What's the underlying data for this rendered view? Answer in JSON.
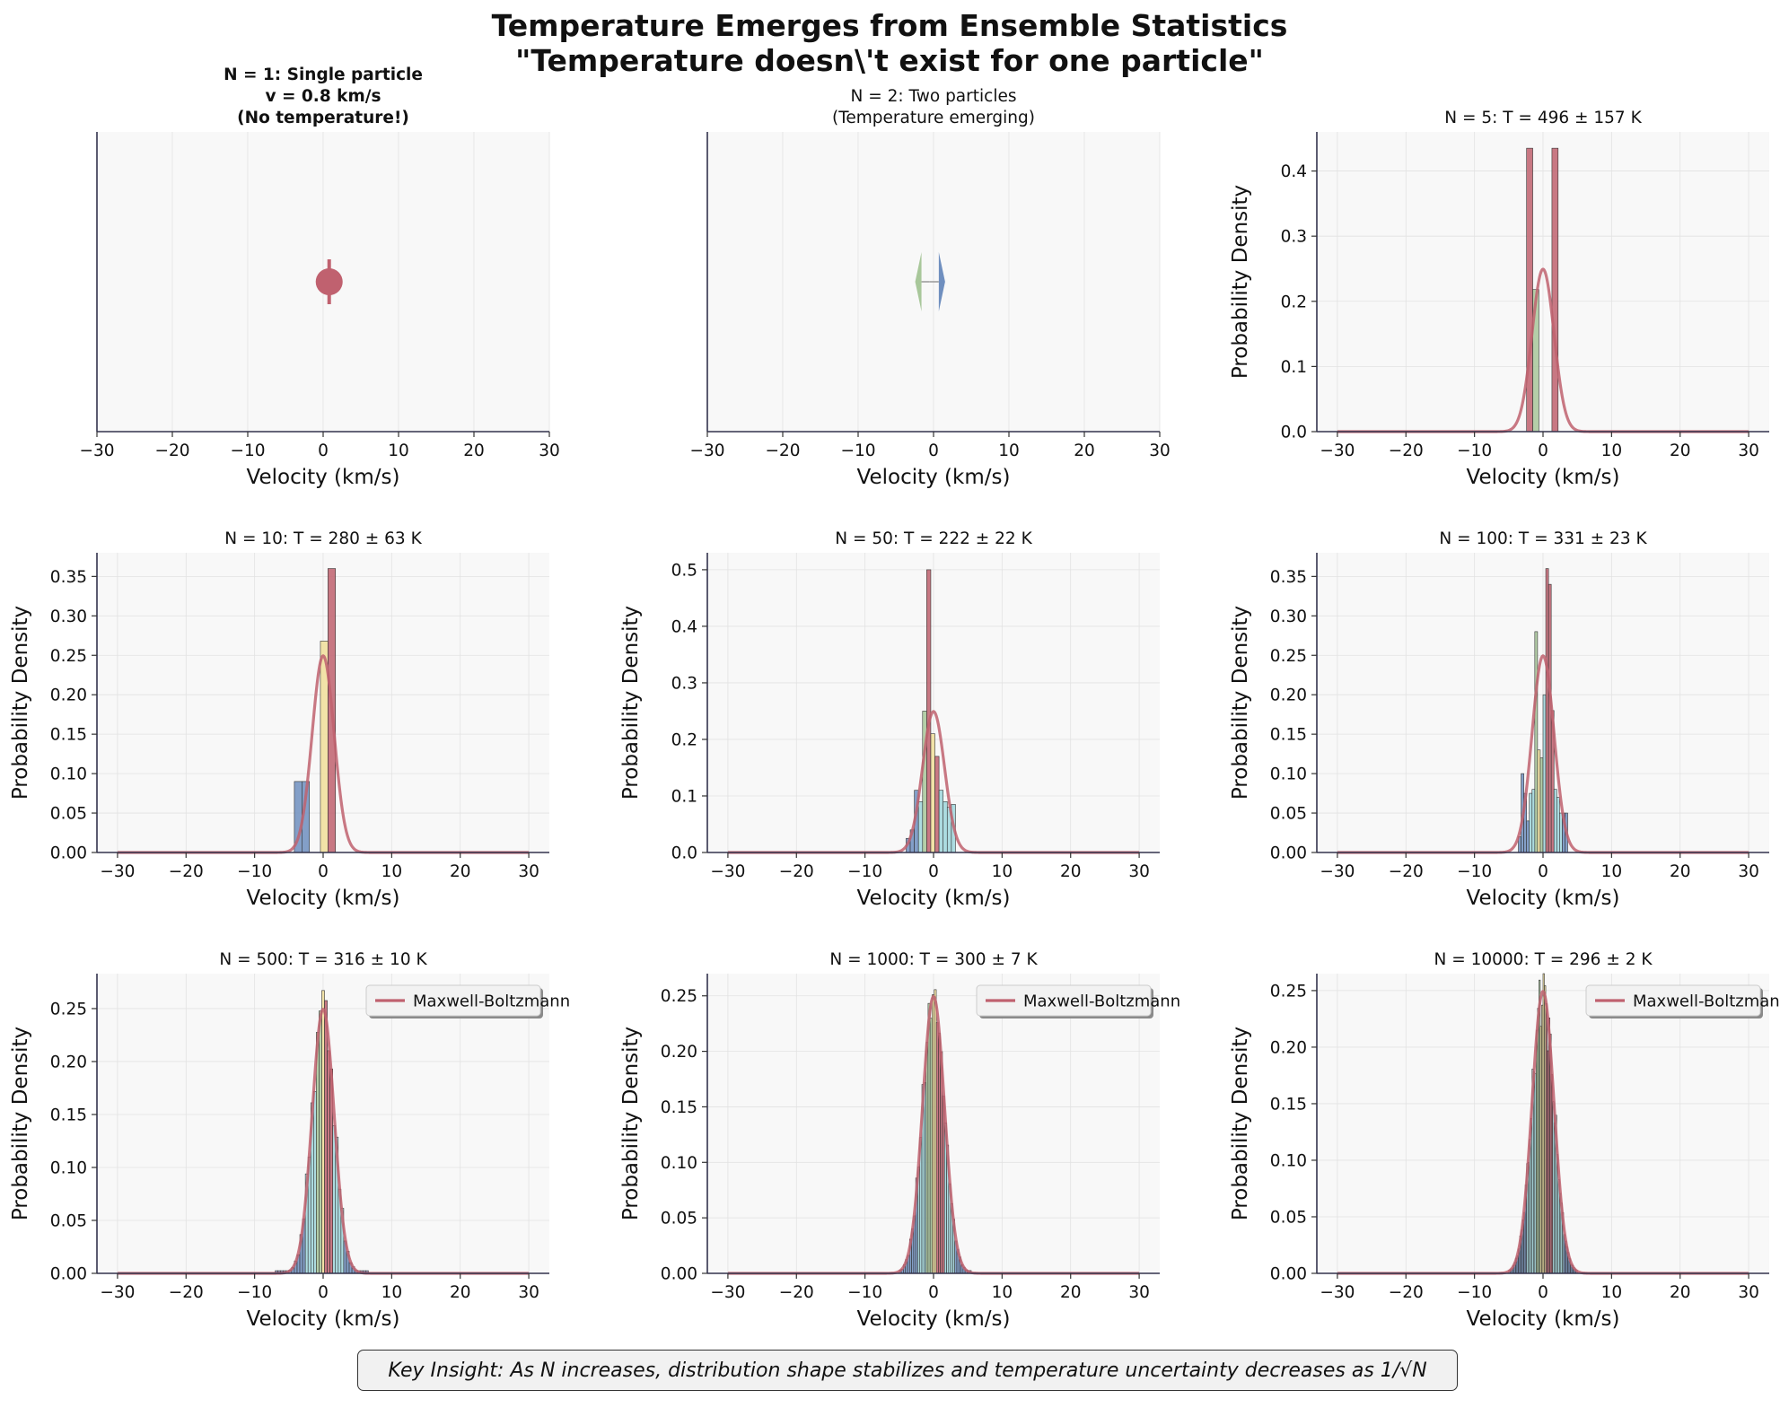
{
  "figure": {
    "suptitle_line1": "Temperature Emerges from Ensemble Statistics",
    "suptitle_line2": "\"Temperature doesn\\'t exist for one particle\"",
    "insight": "Key Insight: As N increases, distribution shape stabilizes and temperature uncertainty decreases as 1/√N"
  },
  "colors": {
    "red": "#c0616f",
    "blue": "#6f8fbf",
    "green": "#a8c79a",
    "yellow": "#f1df9a",
    "cyan": "#9fd6dc",
    "axes_bg": "#f8f8f8",
    "spine": "#33334d"
  },
  "chart_data": [
    {
      "type": "scatter",
      "title_lines": [
        "N = 1: Single particle",
        "v = 0.8 km/s",
        "(No temperature!)"
      ],
      "title_bold": true,
      "xlabel": "Velocity (km/s)",
      "ylabel": "",
      "xlim": [
        -30,
        30
      ],
      "ylim": [
        0,
        1
      ],
      "xticks": [
        -30,
        -20,
        -10,
        0,
        10,
        20,
        30
      ],
      "yticks": [],
      "points": [
        {
          "x": 0.8,
          "y": 0.5,
          "color": "red"
        }
      ]
    },
    {
      "type": "scatter",
      "title_lines": [
        "N = 2: Two particles",
        "(Temperature emerging)"
      ],
      "title_bold": false,
      "xlabel": "Velocity (km/s)",
      "ylabel": "",
      "xlim": [
        -30,
        30
      ],
      "ylim": [
        0,
        1
      ],
      "xticks": [
        -30,
        -20,
        -10,
        0,
        10,
        20,
        30
      ],
      "yticks": [],
      "arrows": [
        {
          "x": -1.6,
          "y": 0.5,
          "dir": "left",
          "color": "green"
        },
        {
          "x": 0.7,
          "y": 0.5,
          "dir": "right",
          "color": "blue"
        }
      ]
    },
    {
      "type": "bar",
      "title_lines": [
        "N = 5: T = 496 ± 157 K"
      ],
      "xlabel": "Velocity (km/s)",
      "ylabel": "Probability Density",
      "xlim": [
        -33,
        33
      ],
      "ylim": [
        0,
        0.46
      ],
      "xticks": [
        -30,
        -20,
        -10,
        0,
        10,
        20,
        30
      ],
      "yticks": [
        0.0,
        0.1,
        0.2,
        0.3,
        0.4
      ],
      "ytick_labels": [
        "0.0",
        "0.1",
        "0.2",
        "0.3",
        "0.4"
      ],
      "mb_sigma": 1.6,
      "bins": [
        [
          -2.4,
          -1.5,
          0.435,
          "red"
        ],
        [
          -1.5,
          -0.6,
          0.218,
          "green"
        ],
        [
          1.3,
          2.2,
          0.435,
          "red"
        ]
      ]
    },
    {
      "type": "bar",
      "title_lines": [
        "N = 10: T = 280 ± 63 K"
      ],
      "xlabel": "Velocity (km/s)",
      "ylabel": "Probability Density",
      "xlim": [
        -33,
        33
      ],
      "ylim": [
        0,
        0.38
      ],
      "xticks": [
        -30,
        -20,
        -10,
        0,
        10,
        20,
        30
      ],
      "yticks": [
        0.0,
        0.05,
        0.1,
        0.15,
        0.2,
        0.25,
        0.3,
        0.35
      ],
      "ytick_labels": [
        "0.00",
        "0.05",
        "0.10",
        "0.15",
        "0.20",
        "0.25",
        "0.30",
        "0.35"
      ],
      "mb_sigma": 1.6,
      "bins": [
        [
          -4.2,
          -3.1,
          0.09,
          "blue"
        ],
        [
          -3.1,
          -2.0,
          0.09,
          "blue"
        ],
        [
          -0.4,
          0.7,
          0.268,
          "yellow"
        ],
        [
          0.7,
          1.8,
          0.36,
          "red"
        ]
      ]
    },
    {
      "type": "bar",
      "title_lines": [
        "N = 50: T = 222 ± 22 K"
      ],
      "xlabel": "Velocity (km/s)",
      "ylabel": "Probability Density",
      "xlim": [
        -33,
        33
      ],
      "ylim": [
        0,
        0.53
      ],
      "xticks": [
        -30,
        -20,
        -10,
        0,
        10,
        20,
        30
      ],
      "yticks": [
        0.0,
        0.1,
        0.2,
        0.3,
        0.4,
        0.5
      ],
      "ytick_labels": [
        "0.0",
        "0.1",
        "0.2",
        "0.3",
        "0.4",
        "0.5"
      ],
      "mb_sigma": 1.6,
      "bins": [
        [
          -4.0,
          -3.4,
          0.025,
          "blue"
        ],
        [
          -3.4,
          -2.8,
          0.04,
          "blue"
        ],
        [
          -2.8,
          -2.2,
          0.11,
          "blue"
        ],
        [
          -2.2,
          -1.6,
          0.09,
          "cyan"
        ],
        [
          -1.6,
          -1.0,
          0.25,
          "green"
        ],
        [
          -1.0,
          -0.4,
          0.5,
          "red"
        ],
        [
          -0.4,
          0.2,
          0.21,
          "yellow"
        ],
        [
          0.2,
          0.8,
          0.17,
          "red"
        ],
        [
          0.8,
          1.4,
          0.11,
          "cyan"
        ],
        [
          1.4,
          2.0,
          0.09,
          "cyan"
        ],
        [
          2.0,
          2.6,
          0.08,
          "cyan"
        ],
        [
          2.6,
          3.2,
          0.085,
          "cyan"
        ]
      ]
    },
    {
      "type": "bar",
      "title_lines": [
        "N = 100: T = 331 ± 23 K"
      ],
      "xlabel": "Velocity (km/s)",
      "ylabel": "Probability Density",
      "xlim": [
        -33,
        33
      ],
      "ylim": [
        0,
        0.38
      ],
      "xticks": [
        -30,
        -20,
        -10,
        0,
        10,
        20,
        30
      ],
      "yticks": [
        0.0,
        0.05,
        0.1,
        0.15,
        0.2,
        0.25,
        0.3,
        0.35
      ],
      "ytick_labels": [
        "0.00",
        "0.05",
        "0.10",
        "0.15",
        "0.20",
        "0.25",
        "0.30",
        "0.35"
      ],
      "mb_sigma": 1.6,
      "bins": [
        [
          -3.6,
          -3.2,
          0.02,
          "blue"
        ],
        [
          -3.2,
          -2.8,
          0.1,
          "blue"
        ],
        [
          -2.8,
          -2.4,
          0.075,
          "blue"
        ],
        [
          -2.4,
          -2.0,
          0.04,
          "blue"
        ],
        [
          -2.0,
          -1.6,
          0.075,
          "cyan"
        ],
        [
          -1.6,
          -1.2,
          0.08,
          "cyan"
        ],
        [
          -1.2,
          -0.8,
          0.28,
          "green"
        ],
        [
          -0.8,
          -0.4,
          0.13,
          "yellow"
        ],
        [
          -0.4,
          0.0,
          0.12,
          "green"
        ],
        [
          0.0,
          0.4,
          0.2,
          "cyan"
        ],
        [
          0.4,
          0.8,
          0.36,
          "red"
        ],
        [
          0.8,
          1.2,
          0.34,
          "red"
        ],
        [
          1.2,
          1.6,
          0.18,
          "red"
        ],
        [
          1.6,
          2.0,
          0.08,
          "cyan"
        ],
        [
          2.0,
          2.4,
          0.07,
          "cyan"
        ],
        [
          2.4,
          2.8,
          0.05,
          "cyan"
        ],
        [
          2.8,
          3.2,
          0.05,
          "blue"
        ],
        [
          3.2,
          3.6,
          0.05,
          "blue"
        ]
      ]
    },
    {
      "type": "bar",
      "title_lines": [
        "N = 500: T = 316 ± 10 K"
      ],
      "xlabel": "Velocity (km/s)",
      "ylabel": "Probability Density",
      "xlim": [
        -33,
        33
      ],
      "ylim": [
        0,
        0.283
      ],
      "xticks": [
        -30,
        -20,
        -10,
        0,
        10,
        20,
        30
      ],
      "yticks": [
        0.0,
        0.05,
        0.1,
        0.15,
        0.2,
        0.25
      ],
      "ytick_labels": [
        "0.00",
        "0.05",
        "0.10",
        "0.15",
        "0.20",
        "0.25"
      ],
      "mb_sigma": 1.6,
      "legend": "Maxwell-Boltzmann",
      "bins_mode": "gauss",
      "bins_from": -7.0,
      "bins_to": 6.4,
      "bin_width": 0.4,
      "scale": 1.02
    },
    {
      "type": "bar",
      "title_lines": [
        "N = 1000: T = 300 ± 7 K"
      ],
      "xlabel": "Velocity (km/s)",
      "ylabel": "Probability Density",
      "xlim": [
        -33,
        33
      ],
      "ylim": [
        0,
        0.27
      ],
      "xticks": [
        -30,
        -20,
        -10,
        0,
        10,
        20,
        30
      ],
      "yticks": [
        0.0,
        0.05,
        0.1,
        0.15,
        0.2,
        0.25
      ],
      "ytick_labels": [
        "0.00",
        "0.05",
        "0.10",
        "0.15",
        "0.20",
        "0.25"
      ],
      "mb_sigma": 1.6,
      "legend": "Maxwell-Boltzmann",
      "bins_mode": "gauss",
      "bins_from": -5.0,
      "bins_to": 5.4,
      "bin_width": 0.3,
      "scale": 1.0
    },
    {
      "type": "bar",
      "title_lines": [
        "N = 10000: T = 296 ± 2 K"
      ],
      "xlabel": "Velocity (km/s)",
      "ylabel": "Probability Density",
      "xlim": [
        -33,
        33
      ],
      "ylim": [
        0,
        0.265
      ],
      "xticks": [
        -30,
        -20,
        -10,
        0,
        10,
        20,
        30
      ],
      "yticks": [
        0.0,
        0.05,
        0.1,
        0.15,
        0.2,
        0.25
      ],
      "ytick_labels": [
        "0.00",
        "0.05",
        "0.10",
        "0.15",
        "0.20",
        "0.25"
      ],
      "mb_sigma": 1.6,
      "legend": "Maxwell-Boltzmann",
      "bins_mode": "gauss",
      "bins_from": -5.0,
      "bins_to": 5.0,
      "bin_width": 0.2,
      "scale": 1.0
    }
  ]
}
